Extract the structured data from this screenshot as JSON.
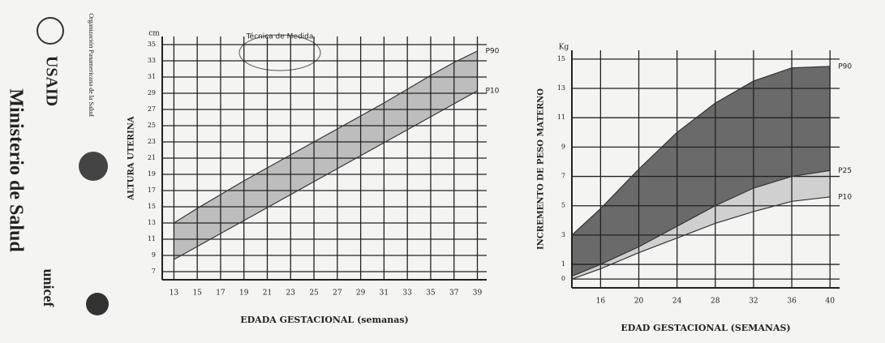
{
  "sidebar": {
    "ministry": "Ministerio de Salud",
    "usaid": "USAID",
    "ops": "Organización Panamericana de la Salud",
    "unicef": "unicef"
  },
  "illustration": "Técnica de Medida",
  "chart_data": [
    {
      "type": "line",
      "y_label": "ALTURA UTERINA",
      "unit": "cm",
      "x_label": "EDADA GESTACIONAL  (semanas)",
      "x": [
        13,
        15,
        17,
        19,
        21,
        23,
        25,
        27,
        29,
        31,
        33,
        35,
        37,
        39
      ],
      "series": [
        {
          "name": "P90",
          "color": "#333333",
          "fill": "#bdbdbd",
          "values": [
            13,
            14.8,
            16.5,
            18.2,
            19.8,
            21.4,
            23,
            24.6,
            26.2,
            27.8,
            29.5,
            31.2,
            32.8,
            34.2
          ]
        },
        {
          "name": "P10",
          "color": "#333333",
          "values": [
            8.5,
            10.1,
            11.7,
            13.3,
            14.9,
            16.5,
            18.1,
            19.7,
            21.3,
            22.9,
            24.5,
            26.1,
            27.7,
            29.3
          ]
        }
      ],
      "xlim": [
        12,
        39.8
      ],
      "ylim": [
        6,
        36
      ],
      "xticks": [
        13,
        15,
        17,
        19,
        21,
        23,
        25,
        27,
        29,
        31,
        33,
        35,
        37,
        39
      ],
      "yticks": [
        7,
        9,
        11,
        13,
        15,
        17,
        19,
        21,
        23,
        25,
        27,
        29,
        31,
        33,
        35
      ],
      "grid": true
    },
    {
      "type": "line",
      "y_label": "INCREMENTO DE PESO MATERNO",
      "unit": "Kg",
      "x_label": "EDAD GESTACIONAL (SEMANAS)",
      "x": [
        13,
        16,
        20,
        24,
        28,
        32,
        36,
        40
      ],
      "series": [
        {
          "name": "P90",
          "color": "#333333",
          "fill": "#6a6a6a",
          "values": [
            3,
            4.8,
            7.5,
            10,
            12,
            13.5,
            14.4,
            14.5
          ]
        },
        {
          "name": "P25",
          "color": "#333333",
          "fill": "#d0d0d0",
          "values": [
            0.2,
            1,
            2.2,
            3.6,
            5,
            6.2,
            7,
            7.4
          ]
        },
        {
          "name": "P10",
          "color": "#333333",
          "values": [
            0,
            0.7,
            1.8,
            2.8,
            3.8,
            4.6,
            5.3,
            5.6
          ]
        }
      ],
      "xlim": [
        13,
        41
      ],
      "ylim": [
        -0.6,
        15.6
      ],
      "xticks": [
        16,
        20,
        24,
        28,
        32,
        36,
        40
      ],
      "yticks": [
        0,
        1,
        3,
        5,
        7,
        9,
        11,
        13,
        15
      ],
      "grid": true
    }
  ]
}
